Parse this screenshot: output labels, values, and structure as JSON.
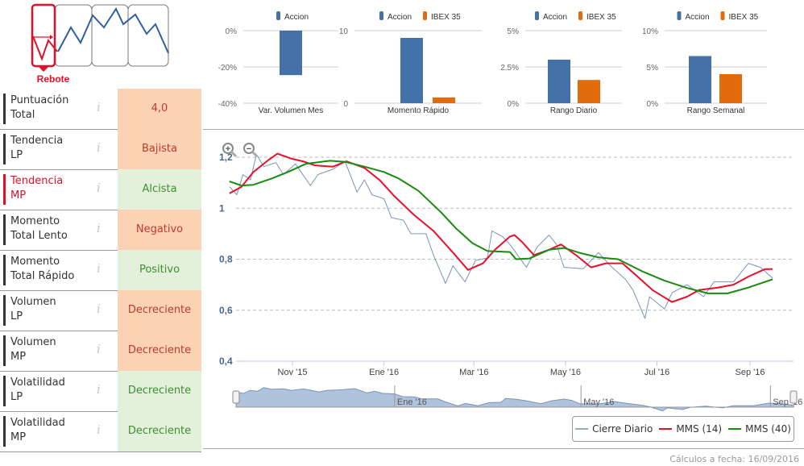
{
  "pattern": {
    "label": "Rebote",
    "icon": "rebound-pattern-icon",
    "color": "#e0102a"
  },
  "indicators": [
    {
      "label1": "Puntuación",
      "label2": "Total",
      "value": "4,0",
      "tone": "orange",
      "selected": false
    },
    {
      "label1": "Tendencia",
      "label2": "LP",
      "value": "Bajista",
      "tone": "orange",
      "selected": false
    },
    {
      "label1": "Tendencia",
      "label2": "MP",
      "value": "Alcista",
      "tone": "green",
      "selected": true
    },
    {
      "label1": "Momento",
      "label2": "Total Lento",
      "value": "Negativo",
      "tone": "orange",
      "selected": false
    },
    {
      "label1": "Momento",
      "label2": "Total Rápido",
      "value": "Positivo",
      "tone": "green",
      "selected": false
    },
    {
      "label1": "Volumen",
      "label2": "LP",
      "value": "Decreciente",
      "tone": "orange",
      "selected": false
    },
    {
      "label1": "Volumen",
      "label2": "MP",
      "value": "Decreciente",
      "tone": "orange",
      "selected": false
    },
    {
      "label1": "Volatilidad",
      "label2": "LP",
      "value": "Decreciente",
      "tone": "green",
      "selected": false
    },
    {
      "label1": "Volatilidad",
      "label2": "MP",
      "value": "Decreciente",
      "tone": "green",
      "selected": false
    }
  ],
  "info_icon": "i",
  "colors": {
    "accion": "#4472a8",
    "ibex": "#e36c0a",
    "close": "#7a94b8",
    "mms14": "#e8102a",
    "mms40": "#1a8a10",
    "navigator": "#b0c3dc"
  },
  "chart_data": [
    {
      "type": "bar",
      "title": "Var. Volumen Mes",
      "categories": [
        "Var. Volumen Mes"
      ],
      "series": [
        {
          "name": "Accion",
          "values": [
            -24.5
          ]
        }
      ],
      "ylim": [
        -40,
        0
      ],
      "yticks": [
        "0%",
        "-20%",
        "-40%"
      ],
      "ytick_values": [
        0,
        -20,
        -40
      ]
    },
    {
      "type": "bar",
      "title": "Momento Rápido",
      "categories": [
        "Momento Rápido"
      ],
      "series": [
        {
          "name": "Accion",
          "values": [
            9
          ]
        },
        {
          "name": "IBEX 35",
          "values": [
            0.8
          ]
        }
      ],
      "ylim": [
        0,
        10
      ],
      "yticks": [
        "10",
        "0"
      ],
      "ytick_values": [
        10,
        0
      ]
    },
    {
      "type": "bar",
      "title": "Rango Diario",
      "categories": [
        "Rango Diario"
      ],
      "series": [
        {
          "name": "Accion",
          "values": [
            3.0
          ]
        },
        {
          "name": "IBEX 35",
          "values": [
            1.6
          ]
        }
      ],
      "ylim": [
        0,
        5
      ],
      "yticks": [
        "5%",
        "2.5%",
        "0%"
      ],
      "ytick_values": [
        5,
        2.5,
        0
      ]
    },
    {
      "type": "bar",
      "title": "Rango Semanal",
      "categories": [
        "Rango Semanal"
      ],
      "series": [
        {
          "name": "Accion",
          "values": [
            6.5
          ]
        },
        {
          "name": "IBEX 35",
          "values": [
            4.0
          ]
        }
      ],
      "ylim": [
        0,
        10
      ],
      "yticks": [
        "10%",
        "5%",
        "0%"
      ],
      "ytick_values": [
        10,
        5,
        0
      ]
    },
    {
      "type": "line",
      "ylim": [
        0.4,
        1.2
      ],
      "grid": true,
      "legend_placement": "bottom-right",
      "yticks": [
        "1,2",
        "1",
        "0,8",
        "0,6",
        "0,4"
      ],
      "ytick_values": [
        1.2,
        1.0,
        0.8,
        0.6,
        0.4
      ],
      "xticks": [
        "Nov '15",
        "Ene '16",
        "Mar '16",
        "May '16",
        "Jul '16",
        "Sep '16"
      ],
      "xtick_dates": [
        "2015-11-01",
        "2016-01-01",
        "2016-03-01",
        "2016-05-01",
        "2016-07-01",
        "2016-09-01"
      ],
      "navigator_ticks": [
        "Ene '16",
        "May '16",
        "Sep '16"
      ],
      "navigator_tick_dates": [
        "2016-01-01",
        "2016-05-01",
        "2016-09-01"
      ],
      "series": [
        {
          "name": "Cierre Diario",
          "points": [
            [
              "2015-09-20",
              1.084
            ],
            [
              "2015-09-25",
              1.053
            ],
            [
              "2015-09-29",
              1.132
            ],
            [
              "2015-10-04",
              1.111
            ],
            [
              "2015-10-08",
              1.211
            ],
            [
              "2015-10-13",
              1.163
            ],
            [
              "2015-10-21",
              1.179
            ],
            [
              "2015-10-26",
              1.132
            ],
            [
              "2015-11-03",
              1.174
            ],
            [
              "2015-11-13",
              1.089
            ],
            [
              "2015-11-18",
              1.132
            ],
            [
              "2015-11-28",
              1.153
            ],
            [
              "2015-12-06",
              1.184
            ],
            [
              "2015-12-14",
              1.063
            ],
            [
              "2015-12-19",
              1.111
            ],
            [
              "2015-12-24",
              1.053
            ],
            [
              "2016-01-01",
              1.037
            ],
            [
              "2016-01-06",
              0.963
            ],
            [
              "2016-01-14",
              0.953
            ],
            [
              "2016-01-19",
              0.9
            ],
            [
              "2016-01-29",
              0.9
            ],
            [
              "2016-02-03",
              0.816
            ],
            [
              "2016-02-11",
              0.705
            ],
            [
              "2016-02-16",
              0.774
            ],
            [
              "2016-02-24",
              0.711
            ],
            [
              "2016-03-02",
              0.795
            ],
            [
              "2016-03-10",
              0.805
            ],
            [
              "2016-03-13",
              0.911
            ],
            [
              "2016-03-20",
              0.889
            ],
            [
              "2016-03-25",
              0.858
            ],
            [
              "2016-04-05",
              0.768
            ],
            [
              "2016-04-12",
              0.847
            ],
            [
              "2016-04-20",
              0.895
            ],
            [
              "2016-04-25",
              0.858
            ],
            [
              "2016-04-30",
              0.768
            ],
            [
              "2016-05-13",
              0.763
            ],
            [
              "2016-05-23",
              0.826
            ],
            [
              "2016-05-31",
              0.774
            ],
            [
              "2016-06-10",
              0.721
            ],
            [
              "2016-06-15",
              0.679
            ],
            [
              "2016-06-23",
              0.568
            ],
            [
              "2016-06-26",
              0.653
            ],
            [
              "2016-07-06",
              0.605
            ],
            [
              "2016-07-11",
              0.668
            ],
            [
              "2016-07-21",
              0.7
            ],
            [
              "2016-08-01",
              0.653
            ],
            [
              "2016-08-08",
              0.711
            ],
            [
              "2016-08-21",
              0.711
            ],
            [
              "2016-08-31",
              0.784
            ],
            [
              "2016-09-08",
              0.768
            ],
            [
              "2016-09-16",
              0.726
            ]
          ]
        },
        {
          "name": "MMS (14)",
          "points": [
            [
              "2015-09-20",
              1.058
            ],
            [
              "2015-09-28",
              1.084
            ],
            [
              "2015-10-06",
              1.142
            ],
            [
              "2015-10-16",
              1.189
            ],
            [
              "2015-10-22",
              1.214
            ],
            [
              "2015-10-31",
              1.195
            ],
            [
              "2015-11-08",
              1.184
            ],
            [
              "2015-11-16",
              1.168
            ],
            [
              "2015-11-28",
              1.163
            ],
            [
              "2015-12-07",
              1.184
            ],
            [
              "2015-12-19",
              1.158
            ],
            [
              "2015-12-29",
              1.111
            ],
            [
              "2016-01-08",
              1.047
            ],
            [
              "2016-01-21",
              0.974
            ],
            [
              "2016-02-03",
              0.911
            ],
            [
              "2016-02-16",
              0.826
            ],
            [
              "2016-02-26",
              0.758
            ],
            [
              "2016-03-07",
              0.784
            ],
            [
              "2016-03-15",
              0.837
            ],
            [
              "2016-03-25",
              0.889
            ],
            [
              "2016-03-28",
              0.895
            ],
            [
              "2016-04-02",
              0.868
            ],
            [
              "2016-04-10",
              0.816
            ],
            [
              "2016-04-20",
              0.837
            ],
            [
              "2016-04-28",
              0.858
            ],
            [
              "2016-05-08",
              0.816
            ],
            [
              "2016-05-18",
              0.768
            ],
            [
              "2016-05-28",
              0.784
            ],
            [
              "2016-06-08",
              0.784
            ],
            [
              "2016-06-18",
              0.732
            ],
            [
              "2016-06-28",
              0.679
            ],
            [
              "2016-07-11",
              0.632
            ],
            [
              "2016-07-21",
              0.653
            ],
            [
              "2016-07-29",
              0.679
            ],
            [
              "2016-08-11",
              0.689
            ],
            [
              "2016-08-21",
              0.7
            ],
            [
              "2016-08-31",
              0.732
            ],
            [
              "2016-09-11",
              0.761
            ],
            [
              "2016-09-16",
              0.761
            ]
          ]
        },
        {
          "name": "MMS (40)",
          "points": [
            [
              "2015-09-20",
              1.105
            ],
            [
              "2015-09-28",
              1.089
            ],
            [
              "2015-10-06",
              1.092
            ],
            [
              "2015-10-18",
              1.116
            ],
            [
              "2015-10-29",
              1.142
            ],
            [
              "2015-11-10",
              1.174
            ],
            [
              "2015-11-26",
              1.186
            ],
            [
              "2015-12-06",
              1.182
            ],
            [
              "2015-12-19",
              1.163
            ],
            [
              "2016-01-01",
              1.142
            ],
            [
              "2016-01-11",
              1.116
            ],
            [
              "2016-01-24",
              1.068
            ],
            [
              "2016-02-08",
              0.984
            ],
            [
              "2016-02-18",
              0.921
            ],
            [
              "2016-02-29",
              0.863
            ],
            [
              "2016-03-10",
              0.832
            ],
            [
              "2016-03-25",
              0.828
            ],
            [
              "2016-03-29",
              0.8
            ],
            [
              "2016-04-07",
              0.803
            ],
            [
              "2016-04-20",
              0.837
            ],
            [
              "2016-04-30",
              0.844
            ],
            [
              "2016-05-11",
              0.824
            ],
            [
              "2016-05-23",
              0.807
            ],
            [
              "2016-06-05",
              0.8
            ],
            [
              "2016-06-21",
              0.753
            ],
            [
              "2016-07-06",
              0.716
            ],
            [
              "2016-07-21",
              0.687
            ],
            [
              "2016-08-04",
              0.666
            ],
            [
              "2016-08-17",
              0.666
            ],
            [
              "2016-08-31",
              0.689
            ],
            [
              "2016-09-16",
              0.721
            ]
          ]
        }
      ]
    }
  ],
  "legend": [
    "Cierre Diario",
    "MMS (14)",
    "MMS (40)"
  ],
  "footer": "Cálculos a fecha: 16/09/2016"
}
